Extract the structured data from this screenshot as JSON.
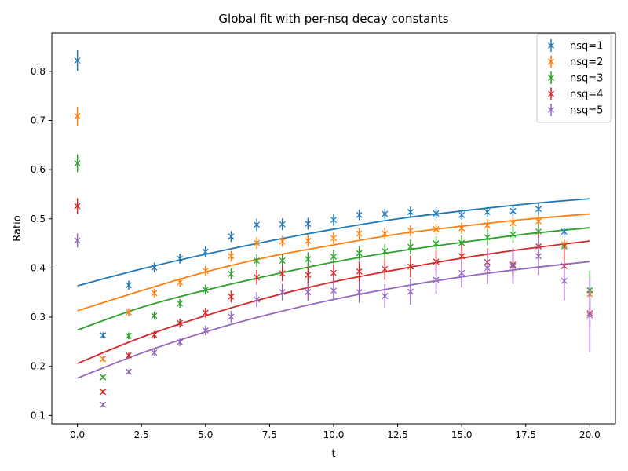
{
  "chart_data": {
    "type": "scatter",
    "title": "Global fit with per-nsq decay constants",
    "xlabel": "t",
    "ylabel": "Ratio",
    "xlim": [
      -1.0,
      21.0
    ],
    "ylim": [
      0.083,
      0.878
    ],
    "xticks": [
      0.0,
      2.5,
      5.0,
      7.5,
      10.0,
      12.5,
      15.0,
      17.5,
      20.0
    ],
    "xtick_labels": [
      "0.0",
      "2.5",
      "5.0",
      "7.5",
      "10.0",
      "12.5",
      "15.0",
      "17.5",
      "20.0"
    ],
    "yticks": [
      0.1,
      0.2,
      0.3,
      0.4,
      0.5,
      0.6,
      0.7,
      0.8
    ],
    "ytick_labels": [
      "0.1",
      "0.2",
      "0.3",
      "0.4",
      "0.5",
      "0.6",
      "0.7",
      "0.8"
    ],
    "grid": false,
    "legend_position": "top-right",
    "series": [
      {
        "name": "nsq=1",
        "color": "#1f77b4",
        "x": [
          0,
          1,
          2,
          3,
          4,
          5,
          6,
          7,
          8,
          9,
          10,
          11,
          12,
          13,
          14,
          15,
          16,
          17,
          18,
          19
        ],
        "y": [
          0.822,
          0.263,
          0.365,
          0.401,
          0.419,
          0.433,
          0.464,
          0.488,
          0.489,
          0.49,
          0.498,
          0.508,
          0.51,
          0.514,
          0.511,
          0.508,
          0.514,
          0.516,
          0.52,
          0.474
        ],
        "err": [
          0.021,
          0.006,
          0.009,
          0.01,
          0.01,
          0.011,
          0.011,
          0.013,
          0.012,
          0.012,
          0.012,
          0.011,
          0.011,
          0.011,
          0.01,
          0.01,
          0.01,
          0.011,
          0.012,
          0.008
        ],
        "fit_x": [
          0,
          2.5,
          5,
          7.5,
          10,
          12.5,
          15,
          17.5,
          20
        ],
        "fit_y": [
          0.364,
          0.398,
          0.428,
          0.455,
          0.479,
          0.5,
          0.516,
          0.53,
          0.541
        ]
      },
      {
        "name": "nsq=2",
        "color": "#ff7f0e",
        "x": [
          0,
          1,
          2,
          3,
          4,
          5,
          6,
          7,
          8,
          9,
          10,
          11,
          12,
          13,
          14,
          15,
          16,
          17,
          18,
          19,
          20
        ],
        "y": [
          0.709,
          0.215,
          0.31,
          0.349,
          0.371,
          0.394,
          0.424,
          0.451,
          0.454,
          0.455,
          0.461,
          0.47,
          0.47,
          0.476,
          0.479,
          0.481,
          0.487,
          0.491,
          0.495,
          0.448,
          0.347
        ],
        "err": [
          0.019,
          0.005,
          0.008,
          0.009,
          0.009,
          0.01,
          0.011,
          0.012,
          0.011,
          0.012,
          0.012,
          0.012,
          0.012,
          0.011,
          0.011,
          0.012,
          0.012,
          0.012,
          0.013,
          0.01,
          0.01
        ],
        "fit_x": [
          0,
          2.5,
          5,
          7.5,
          10,
          12.5,
          15,
          17.5,
          20
        ],
        "fit_y": [
          0.313,
          0.354,
          0.392,
          0.423,
          0.447,
          0.469,
          0.485,
          0.499,
          0.51
        ]
      },
      {
        "name": "nsq=3",
        "color": "#2ca02c",
        "x": [
          0,
          1,
          2,
          3,
          4,
          5,
          6,
          7,
          8,
          9,
          10,
          11,
          12,
          13,
          14,
          15,
          16,
          17,
          18,
          19,
          20
        ],
        "y": [
          0.613,
          0.178,
          0.262,
          0.303,
          0.328,
          0.356,
          0.388,
          0.415,
          0.415,
          0.418,
          0.423,
          0.43,
          0.434,
          0.443,
          0.45,
          0.451,
          0.462,
          0.468,
          0.474,
          0.444,
          0.355
        ],
        "err": [
          0.018,
          0.004,
          0.007,
          0.008,
          0.009,
          0.01,
          0.011,
          0.013,
          0.013,
          0.014,
          0.014,
          0.014,
          0.014,
          0.015,
          0.014,
          0.015,
          0.016,
          0.017,
          0.017,
          0.012,
          0.04
        ],
        "fit_x": [
          0,
          2.5,
          5,
          7.5,
          10,
          12.5,
          15,
          17.5,
          20
        ],
        "fit_y": [
          0.274,
          0.32,
          0.355,
          0.385,
          0.412,
          0.434,
          0.452,
          0.469,
          0.482
        ]
      },
      {
        "name": "nsq=4",
        "color": "#d62728",
        "x": [
          0,
          1,
          2,
          3,
          4,
          5,
          6,
          7,
          8,
          9,
          10,
          11,
          12,
          13,
          14,
          15,
          16,
          17,
          18,
          19,
          20
        ],
        "y": [
          0.526,
          0.148,
          0.222,
          0.264,
          0.288,
          0.309,
          0.342,
          0.381,
          0.389,
          0.386,
          0.39,
          0.393,
          0.398,
          0.403,
          0.413,
          0.424,
          0.412,
          0.407,
          0.444,
          0.404,
          0.308
        ],
        "err": [
          0.016,
          0.004,
          0.006,
          0.008,
          0.009,
          0.01,
          0.012,
          0.015,
          0.016,
          0.017,
          0.018,
          0.02,
          0.022,
          0.022,
          0.023,
          0.024,
          0.028,
          0.028,
          0.028,
          0.05,
          0.03
        ],
        "fit_x": [
          0,
          2.5,
          5,
          7.5,
          10,
          12.5,
          15,
          17.5,
          20
        ],
        "fit_y": [
          0.206,
          0.259,
          0.303,
          0.341,
          0.372,
          0.397,
          0.42,
          0.439,
          0.455
        ]
      },
      {
        "name": "nsq=5",
        "color": "#9467bd",
        "x": [
          0,
          1,
          2,
          3,
          4,
          5,
          6,
          7,
          8,
          9,
          10,
          11,
          12,
          13,
          14,
          15,
          16,
          17,
          18,
          19,
          20
        ],
        "y": [
          0.456,
          0.122,
          0.189,
          0.228,
          0.249,
          0.273,
          0.301,
          0.336,
          0.351,
          0.351,
          0.354,
          0.351,
          0.343,
          0.352,
          0.376,
          0.39,
          0.4,
          0.404,
          0.424,
          0.374,
          0.304
        ],
        "err": [
          0.014,
          0.004,
          0.005,
          0.007,
          0.008,
          0.01,
          0.012,
          0.015,
          0.017,
          0.018,
          0.02,
          0.022,
          0.024,
          0.026,
          0.028,
          0.03,
          0.033,
          0.036,
          0.038,
          0.04,
          0.075
        ],
        "fit_x": [
          0,
          2.5,
          5,
          7.5,
          10,
          12.5,
          15,
          17.5,
          20
        ],
        "fit_y": [
          0.176,
          0.227,
          0.27,
          0.306,
          0.336,
          0.361,
          0.382,
          0.399,
          0.413
        ]
      }
    ]
  }
}
